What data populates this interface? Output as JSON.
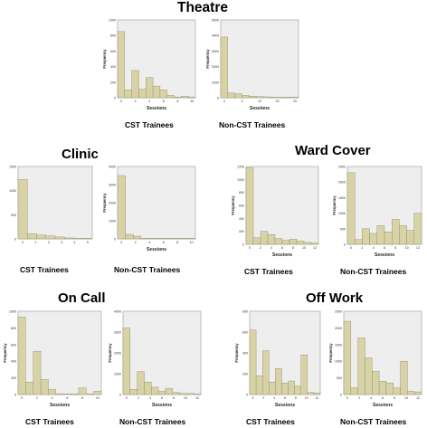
{
  "sections": {
    "theatre": "Theatre",
    "clinic": "Clinic",
    "ward_cover": "Ward Cover",
    "on_call": "On Call",
    "off_work": "Off Work"
  },
  "labels": {
    "cst": "CST Trainees",
    "non_cst": "Non-CST Trainees"
  },
  "colors": {
    "bar_fill": "#d8d3a6",
    "bar_stroke": "#8c8864",
    "plot_bg": "#eeeeee",
    "plot_border": "#9a9a9a"
  },
  "chart_data": [
    {
      "id": "theatre-cst",
      "type": "bar",
      "section": "Theatre",
      "group": "CST Trainees",
      "xlabel": "Sessions",
      "ylabel": "Frequency",
      "ylim": [
        0,
        1000
      ],
      "yticks": [
        "0",
        "200",
        "400",
        "600",
        "800",
        "1000"
      ],
      "xticks": [
        "0",
        "2",
        "4",
        "6",
        "8",
        "10"
      ],
      "values": [
        850,
        100,
        350,
        110,
        260,
        150,
        100,
        30,
        10,
        20,
        5
      ]
    },
    {
      "id": "theatre-noncst",
      "type": "bar",
      "section": "Theatre",
      "group": "Non-CST Trainees",
      "xlabel": "Sessions",
      "ylabel": "Frequency",
      "ylim": [
        0,
        5000
      ],
      "yticks": [
        "0",
        "1000",
        "2000",
        "3000",
        "4000",
        "5000"
      ],
      "xticks": [
        "0",
        "5",
        "10",
        "15",
        "20"
      ],
      "values": [
        3900,
        300,
        250,
        150,
        100,
        80,
        60,
        40,
        30,
        20,
        10
      ]
    },
    {
      "id": "clinic-cst",
      "type": "bar",
      "section": "Clinic",
      "group": "CST Trainees",
      "xlabel": "",
      "ylabel": "",
      "ylim": [
        0,
        1500
      ],
      "yticks": [
        "0",
        "500",
        "1000",
        "1500"
      ],
      "xticks": [
        "0",
        "1",
        "2",
        "3",
        "4",
        "5"
      ],
      "values": [
        1230,
        110,
        80,
        60,
        40,
        20,
        10,
        5
      ]
    },
    {
      "id": "clinic-noncst",
      "type": "bar",
      "section": "Clinic",
      "group": "Non-CST Trainees",
      "xlabel": "Sessions",
      "ylabel": "Frequency",
      "ylim": [
        0,
        4000
      ],
      "yticks": [
        "0",
        "1000",
        "2000",
        "3000",
        "4000"
      ],
      "xticks": [
        "0",
        "2",
        "4",
        "6",
        "8",
        "10"
      ],
      "values": [
        3500,
        250,
        150,
        30,
        10,
        5,
        5,
        5,
        5,
        5
      ]
    },
    {
      "id": "ward-cst",
      "type": "bar",
      "section": "Ward Cover",
      "group": "CST Trainees",
      "xlabel": "Sessions",
      "ylabel": "Frequency",
      "ylim": [
        0,
        1200
      ],
      "yticks": [
        "0",
        "200",
        "400",
        "600",
        "800",
        "1000",
        "1200"
      ],
      "xticks": [
        "0",
        "2",
        "4",
        "6",
        "8",
        "10",
        "12"
      ],
      "values": [
        1180,
        100,
        200,
        150,
        90,
        60,
        80,
        50,
        30,
        20
      ]
    },
    {
      "id": "ward-noncst",
      "type": "bar",
      "section": "Ward Cover",
      "group": "Non-CST Trainees",
      "xlabel": "Sessions",
      "ylabel": "Frequency",
      "ylim": [
        0,
        2500
      ],
      "yticks": [
        "0",
        "500",
        "1000",
        "1500",
        "2000",
        "2500"
      ],
      "xticks": [
        "0",
        "2",
        "4",
        "6",
        "8",
        "10",
        "12"
      ],
      "values": [
        2300,
        150,
        500,
        350,
        600,
        400,
        800,
        600,
        450,
        1000
      ]
    },
    {
      "id": "oncall-cst",
      "type": "bar",
      "section": "On Call",
      "group": "CST Trainees",
      "xlabel": "Sessions",
      "ylabel": "Frequency",
      "ylim": [
        0,
        1000
      ],
      "yticks": [
        "0",
        "200",
        "400",
        "600",
        "800",
        "1000"
      ],
      "xticks": [
        "0",
        "2",
        "4",
        "6",
        "8",
        "10"
      ],
      "values": [
        930,
        150,
        520,
        180,
        60,
        10,
        5,
        5,
        80,
        5,
        40
      ]
    },
    {
      "id": "oncall-noncst",
      "type": "bar",
      "section": "On Call",
      "group": "Non-CST Trainees",
      "xlabel": "Sessions",
      "ylabel": "Frequency",
      "ylim": [
        0,
        4000
      ],
      "yticks": [
        "0",
        "1000",
        "2000",
        "3000",
        "4000"
      ],
      "xticks": [
        "0",
        "2",
        "4",
        "6",
        "8",
        "10",
        "12"
      ],
      "values": [
        3200,
        250,
        1100,
        600,
        350,
        150,
        300,
        100,
        50,
        50,
        20
      ]
    },
    {
      "id": "off-cst",
      "type": "bar",
      "section": "Off Work",
      "group": "CST Trainees",
      "xlabel": "Sessions",
      "ylabel": "Frequency",
      "ylim": [
        0,
        800
      ],
      "yticks": [
        "0",
        "200",
        "400",
        "600",
        "800"
      ],
      "xticks": [
        "0",
        "2",
        "4",
        "6",
        "8",
        "10",
        "12"
      ],
      "values": [
        620,
        180,
        420,
        120,
        250,
        110,
        130,
        80,
        380,
        20,
        15
      ]
    },
    {
      "id": "off-noncst",
      "type": "bar",
      "section": "Off Work",
      "group": "Non-CST Trainees",
      "xlabel": "Sessions",
      "ylabel": "Frequency",
      "ylim": [
        0,
        2500
      ],
      "yticks": [
        "0",
        "500",
        "1000",
        "1500",
        "2000",
        "2500"
      ],
      "xticks": [
        "0",
        "2",
        "4",
        "6",
        "8",
        "10",
        "12"
      ],
      "values": [
        2200,
        200,
        1700,
        1100,
        700,
        400,
        350,
        200,
        1000,
        100,
        80
      ]
    }
  ]
}
